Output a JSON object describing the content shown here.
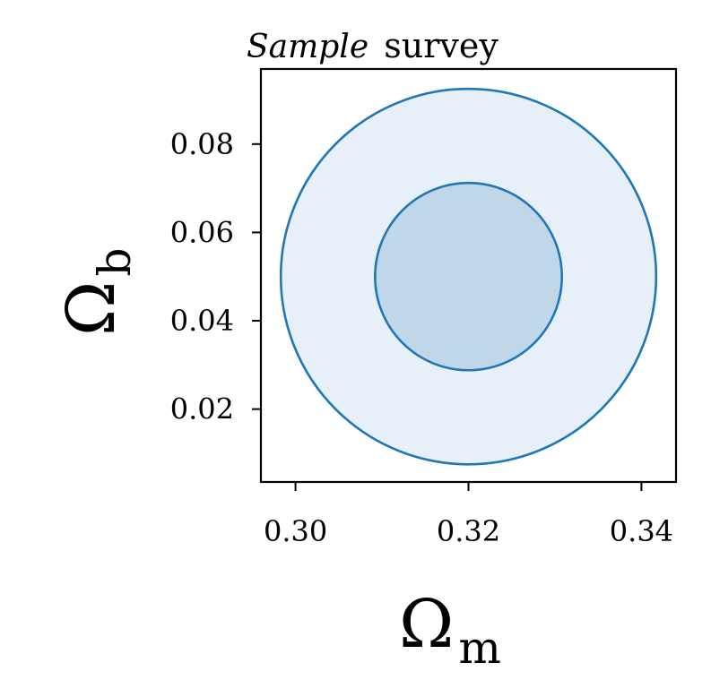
{
  "chart_data": {
    "type": "contour",
    "title": {
      "italic_part": "Sample",
      "regular_part": "survey"
    },
    "xlabel": {
      "symbol": "Ω",
      "subscript": "m"
    },
    "ylabel": {
      "symbol": "Ω",
      "subscript": "b"
    },
    "xlim": [
      0.296,
      0.344
    ],
    "ylim": [
      0.0035,
      0.097
    ],
    "xticks": [
      0.3,
      0.32,
      0.34
    ],
    "xtick_labels": [
      "0.30",
      "0.32",
      "0.34"
    ],
    "yticks": [
      0.02,
      0.04,
      0.06,
      0.08
    ],
    "ytick_labels": [
      "0.02",
      "0.04",
      "0.06",
      "0.08"
    ],
    "center": {
      "x": 0.32,
      "y": 0.05
    },
    "contours": [
      {
        "level": "outer",
        "half_width_x": 0.0217,
        "half_width_y": 0.0425,
        "fill": "#e7eff8",
        "stroke": "#1f77b4"
      },
      {
        "level": "inner",
        "half_width_x": 0.0108,
        "half_width_y": 0.0212,
        "fill": "#c0d7ea",
        "stroke": "#1f77b4"
      }
    ],
    "grid": false,
    "legend": "none"
  }
}
